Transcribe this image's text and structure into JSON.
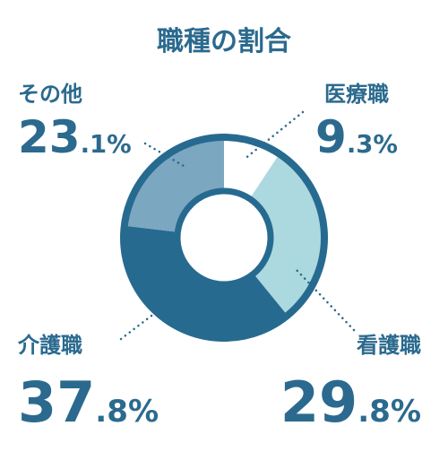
{
  "chart_data": {
    "type": "donut",
    "title": "職種の割合",
    "categories": [
      "医療職",
      "看護職",
      "介護職",
      "その他"
    ],
    "values": [
      9.3,
      29.8,
      37.8,
      23.1
    ],
    "value_labels": [
      "9.3%",
      "29.8%",
      "37.8%",
      "23.1%"
    ],
    "colors": [
      "#ffffff",
      "#abd9df",
      "#276a90",
      "#7ba7c1"
    ],
    "border_color": "#276a90"
  }
}
